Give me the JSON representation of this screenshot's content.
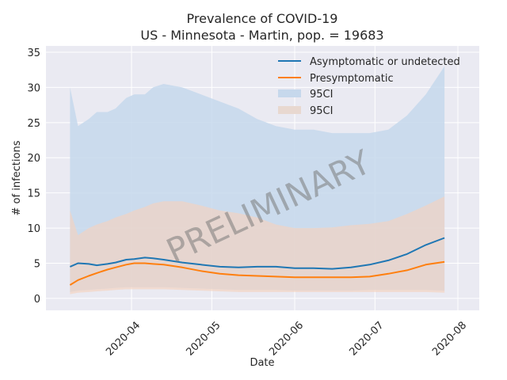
{
  "chart_data": {
    "type": "line",
    "title_line1": "Prevalence of COVID-19",
    "title_line2": "US - Minnesota - Martin, pop. = 19683",
    "xlabel": "Date",
    "ylabel": "# of infections",
    "watermark": "PRELIMINARY",
    "x_ticks": [
      "2020-04",
      "2020-05",
      "2020-06",
      "2020-07",
      "2020-08"
    ],
    "y_ticks": [
      "0",
      "5",
      "10",
      "15",
      "20",
      "25",
      "30",
      "35"
    ],
    "ylim": [
      -1.7,
      35.9
    ],
    "grid": true,
    "legend_position": "top-right",
    "legend": [
      "Asymptomatic or undetected",
      "Presymptomatic",
      "95CI",
      "95CI"
    ],
    "colors": {
      "asymptomatic": "#1f77b4",
      "presymptomatic": "#ff7f0e",
      "ci_asym": "#c6d8ec",
      "ci_presym": "#f5d3bf",
      "background": "#eaeaf2",
      "grid": "#ffffff"
    },
    "series": [
      {
        "name": "Asymptomatic or undetected",
        "x_days": [
          0,
          3,
          7,
          10,
          14,
          17,
          21,
          24,
          28,
          31,
          35,
          42,
          49,
          56,
          63,
          70,
          77,
          84,
          91,
          98,
          105,
          112,
          119,
          126,
          133,
          140
        ],
        "values": [
          4.5,
          5.0,
          4.9,
          4.7,
          4.9,
          5.1,
          5.5,
          5.6,
          5.8,
          5.7,
          5.5,
          5.1,
          4.8,
          4.5,
          4.4,
          4.5,
          4.5,
          4.3,
          4.3,
          4.2,
          4.4,
          4.8,
          5.4,
          6.3,
          7.6,
          8.6
        ],
        "lower": [
          0.9,
          1.1,
          1.2,
          1.3,
          1.4,
          1.5,
          1.6,
          1.6,
          1.6,
          1.6,
          1.6,
          1.5,
          1.4,
          1.3,
          1.2,
          1.2,
          1.2,
          1.1,
          1.1,
          1.1,
          1.1,
          1.2,
          1.2,
          1.2,
          1.2,
          1.1
        ],
        "upper": [
          30.0,
          24.5,
          25.5,
          26.5,
          26.5,
          27.0,
          28.5,
          29.0,
          29.0,
          30.0,
          30.5,
          30.0,
          29.0,
          28.0,
          27.0,
          25.5,
          24.5,
          24.0,
          24.0,
          23.5,
          23.5,
          23.5,
          24.0,
          26.0,
          29.0,
          33.0
        ]
      },
      {
        "name": "Presymptomatic",
        "x_days": [
          0,
          3,
          7,
          10,
          14,
          17,
          21,
          24,
          28,
          31,
          35,
          42,
          49,
          56,
          63,
          70,
          77,
          84,
          91,
          98,
          105,
          112,
          119,
          126,
          133,
          140
        ],
        "values": [
          1.9,
          2.6,
          3.2,
          3.6,
          4.1,
          4.4,
          4.8,
          5.0,
          5.0,
          4.9,
          4.8,
          4.4,
          3.9,
          3.5,
          3.3,
          3.2,
          3.1,
          3.0,
          3.0,
          3.0,
          3.0,
          3.1,
          3.5,
          4.0,
          4.8,
          5.2
        ],
        "lower": [
          0.6,
          0.8,
          0.9,
          1.0,
          1.1,
          1.2,
          1.3,
          1.3,
          1.3,
          1.3,
          1.3,
          1.2,
          1.1,
          1.0,
          0.9,
          0.9,
          0.9,
          0.9,
          0.9,
          0.9,
          0.9,
          0.9,
          0.9,
          0.9,
          0.9,
          0.8
        ],
        "upper": [
          12.5,
          9.0,
          10.0,
          10.5,
          11.0,
          11.5,
          12.0,
          12.5,
          13.0,
          13.5,
          13.8,
          13.8,
          13.2,
          12.5,
          12.1,
          11.5,
          10.5,
          10.0,
          10.0,
          10.1,
          10.4,
          10.6,
          11.0,
          12.0,
          13.2,
          14.5
        ]
      }
    ],
    "x_tick_positions_days": [
      23,
      53,
      84,
      114,
      145
    ]
  }
}
